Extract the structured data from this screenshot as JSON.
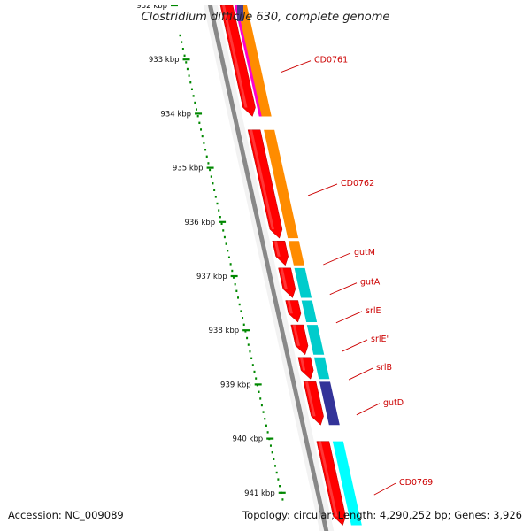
{
  "title": "Clostridium difficile 630, complete genome",
  "footer": {
    "accession": "Accession: NC_009089",
    "summary": "Topology: circular; Length: 4,290,252 bp; Genes: 3,926"
  },
  "kbp_ticks": [
    "932 kbp",
    "933 kbp",
    "934 kbp",
    "935 kbp",
    "936 kbp",
    "937 kbp",
    "938 kbp",
    "939 kbp",
    "940 kbp",
    "941 kbp"
  ],
  "genes": [
    {
      "label": "CD0761",
      "start_kbp": 932.0,
      "end_kbp": 934.05,
      "cog_color": "#ff8c00",
      "cog_color2": "#ff00cc"
    },
    {
      "label": "CD0762",
      "start_kbp": 934.3,
      "end_kbp": 936.3,
      "cog_color": "#ff8c00"
    },
    {
      "label": "gutM",
      "start_kbp": 936.35,
      "end_kbp": 936.8,
      "cog_color": "#ff8c00"
    },
    {
      "label": "gutA",
      "start_kbp": 936.85,
      "end_kbp": 937.4,
      "cog_color": "#00cccc"
    },
    {
      "label": "srlE",
      "start_kbp": 937.45,
      "end_kbp": 937.85,
      "cog_color": "#00cccc"
    },
    {
      "label": "srlE'",
      "start_kbp": 937.9,
      "end_kbp": 938.45,
      "cog_color": "#00cccc"
    },
    {
      "label": "srlB",
      "start_kbp": 938.5,
      "end_kbp": 938.9,
      "cog_color": "#00cccc"
    },
    {
      "label": "gutD",
      "start_kbp": 938.95,
      "end_kbp": 939.75,
      "cog_color": "#333399"
    },
    {
      "label": "CD0769",
      "start_kbp": 940.05,
      "end_kbp": 941.6,
      "cog_color": "#00ffff"
    }
  ],
  "colors": {
    "cds": "#ff0000",
    "backbone": "#888888",
    "tick_dots": "#008800",
    "label": "#cc0000"
  }
}
